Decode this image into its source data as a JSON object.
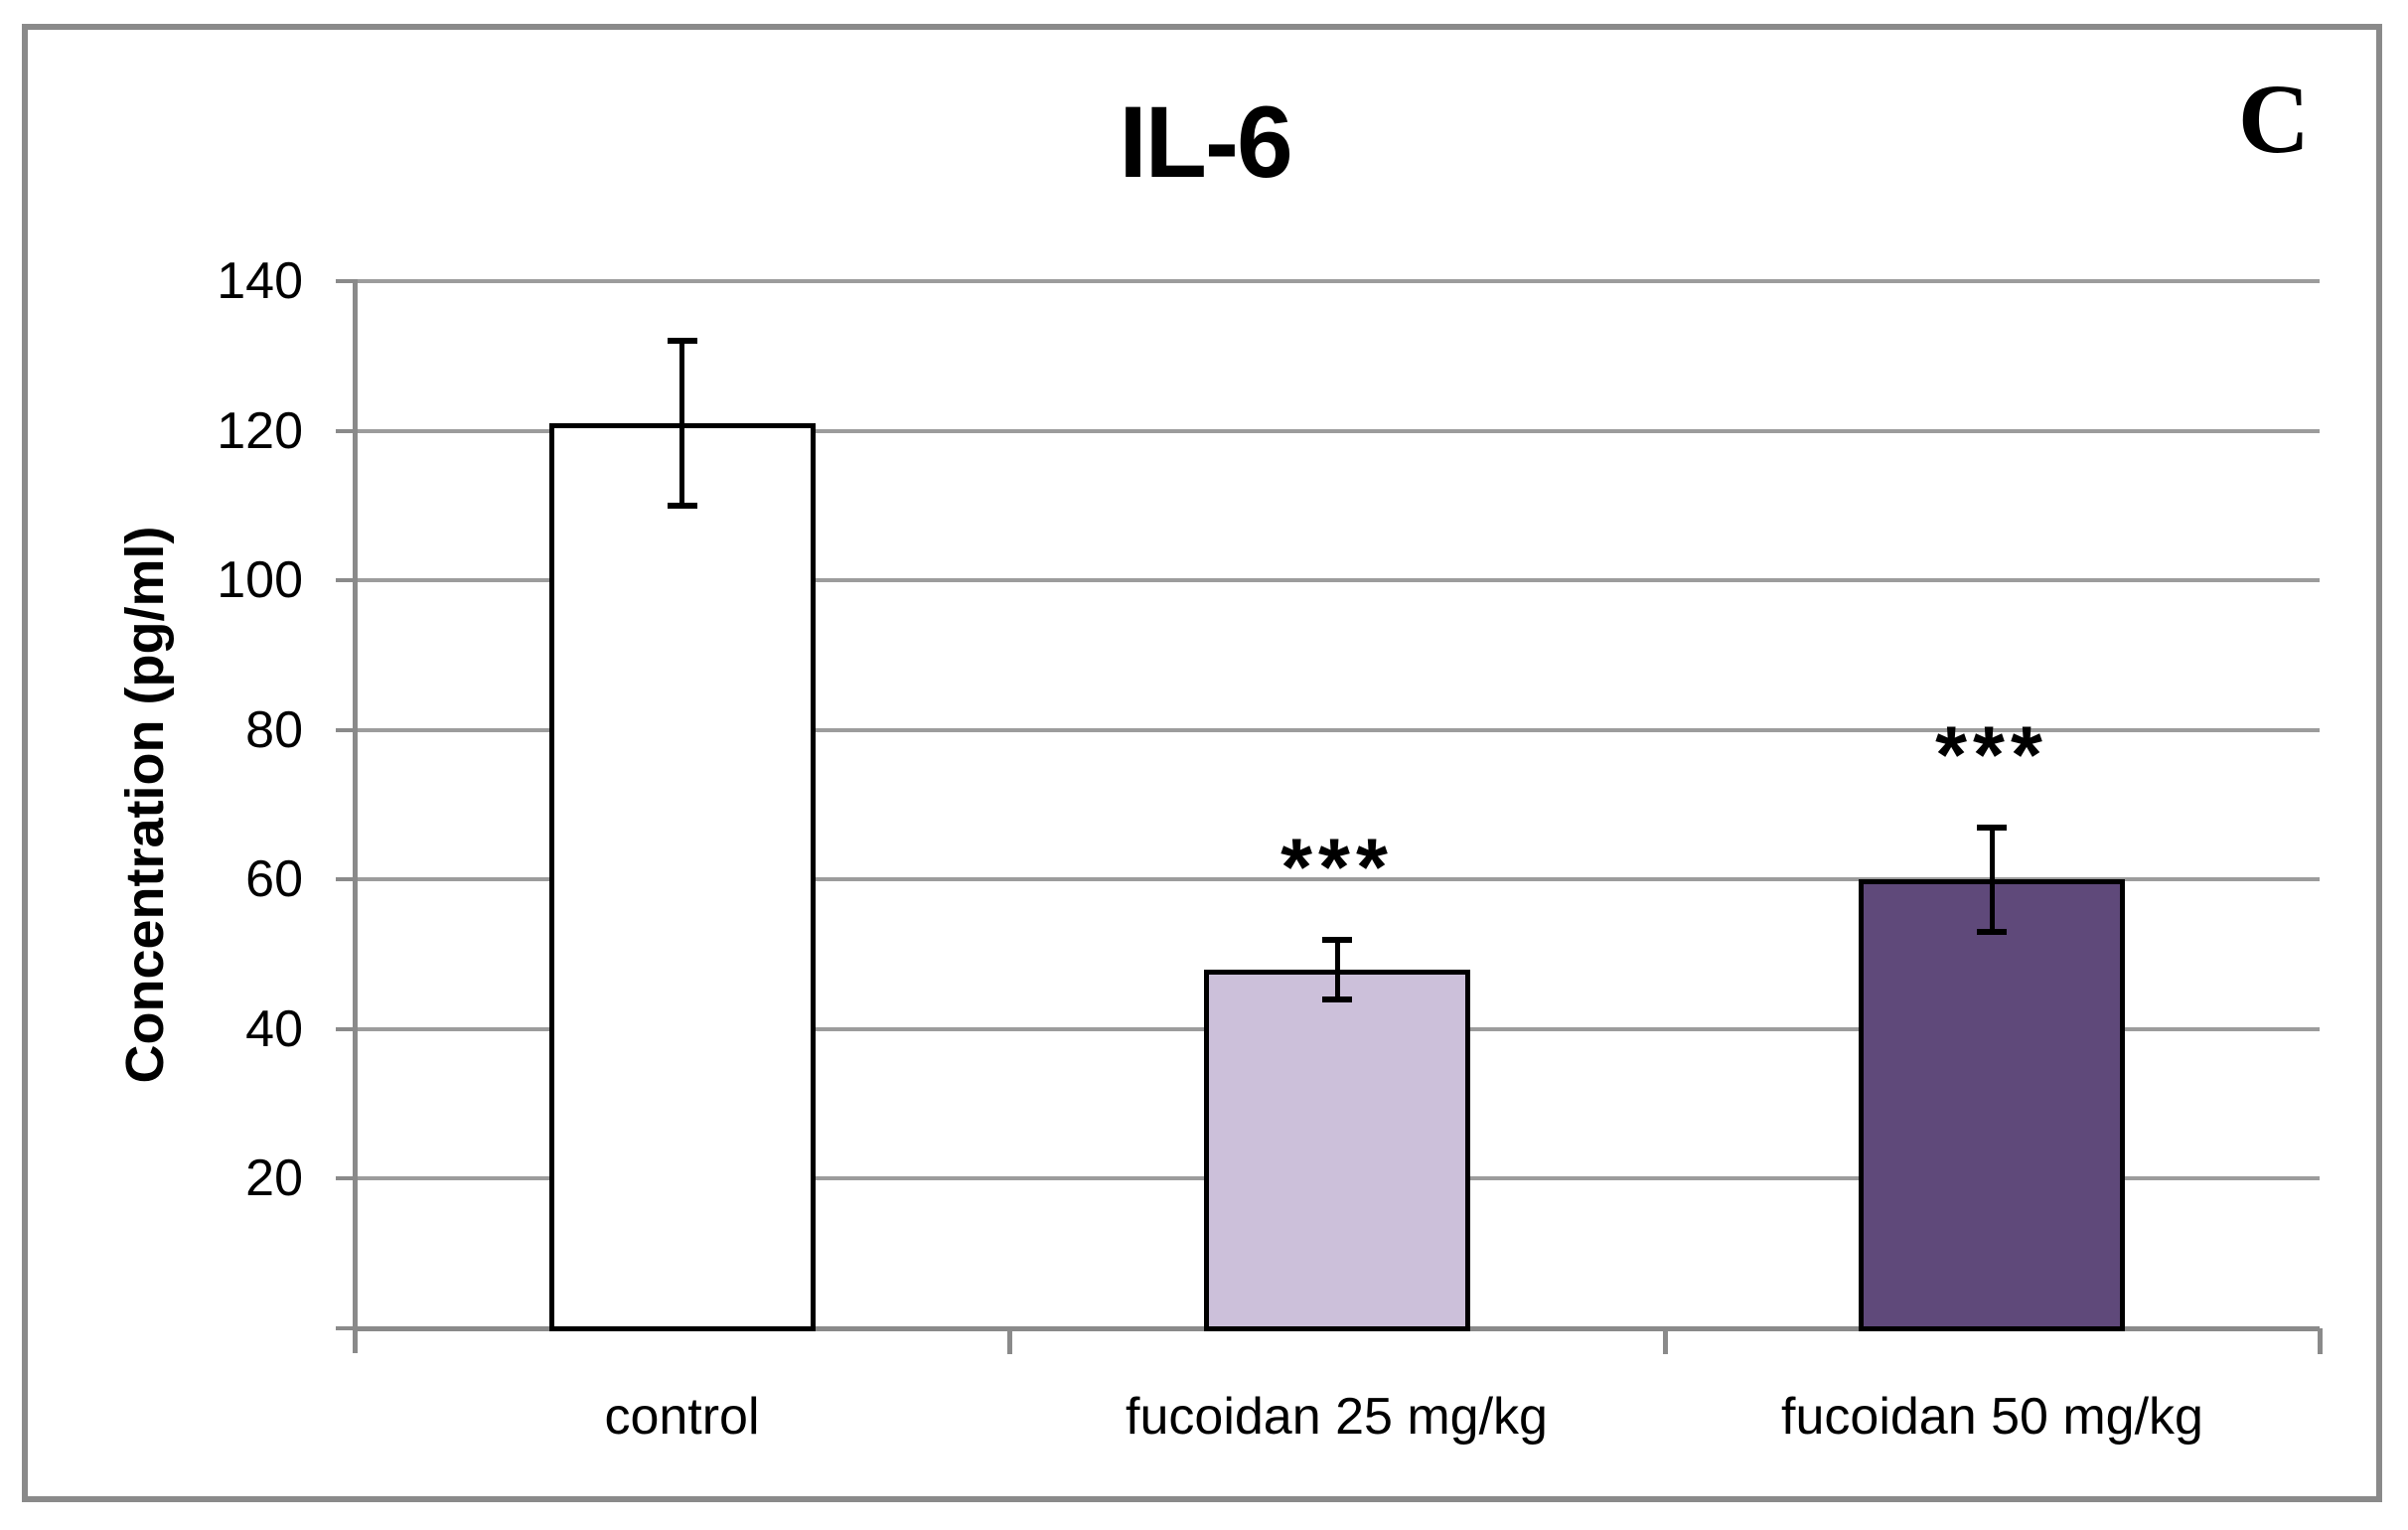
{
  "chart_data": {
    "type": "bar",
    "title": "IL-6",
    "panel_label": "C",
    "xlabel": "",
    "ylabel": "Concentration (pg/ml)",
    "categories": [
      "control",
      "fucoidan 25 mg/kg",
      "fucoidan 50 mg/kg"
    ],
    "values": [
      121,
      48,
      60
    ],
    "error_bars": [
      11,
      4,
      7
    ],
    "significance_labels": [
      "",
      "***",
      "***"
    ],
    "ylim": [
      0,
      140
    ],
    "yticks": [
      20,
      40,
      60,
      80,
      100,
      120,
      140
    ],
    "grid": "horizontal gridlines",
    "legend_position": "none",
    "colors": {
      "bar_fills": [
        "#FFFFFF",
        "#CCC0DA",
        "#5F497A"
      ],
      "bar_border": "#000000",
      "error_bar": "#000000",
      "gridline": "#9C9C9C",
      "axis": "#8A8A8A",
      "figure_border": "#8A8A8A",
      "text": "#000000",
      "background": "#FFFFFF"
    }
  }
}
